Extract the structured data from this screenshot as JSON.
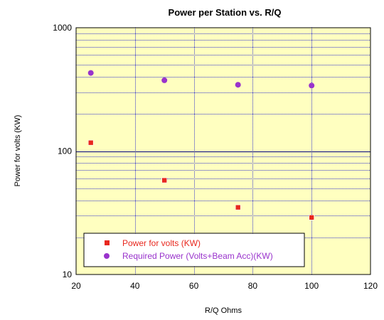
{
  "chart_data": {
    "type": "scatter",
    "title": "Power per Station vs. R/Q",
    "xlabel": "R/Q Ohms",
    "ylabel": "Power for volts (KW)",
    "xlim": [
      20,
      120
    ],
    "ylim": [
      10,
      1000
    ],
    "yscale": "log",
    "x_ticks": [
      20,
      40,
      60,
      80,
      100,
      120
    ],
    "y_ticks": [
      10,
      100,
      1000
    ],
    "grid": true,
    "plot_background": "#ffffc0",
    "legend_position": "bottom-left",
    "series": [
      {
        "name": "Power for volts (KW)",
        "marker": "square",
        "color": "#e8281e",
        "x": [
          25,
          50,
          75,
          100
        ],
        "y": [
          117,
          58,
          35,
          29
        ]
      },
      {
        "name": "Required Power (Volts+Beam Acc)(KW)",
        "marker": "circle",
        "color": "#9933cc",
        "x": [
          25,
          50,
          75,
          100
        ],
        "y": [
          430,
          375,
          345,
          340
        ]
      }
    ]
  }
}
